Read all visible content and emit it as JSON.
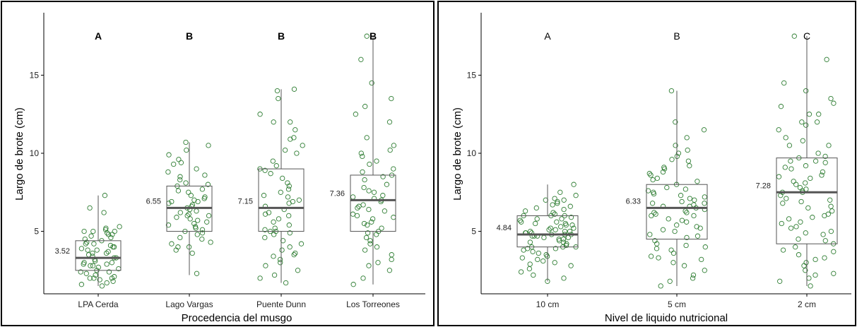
{
  "chart_data": [
    {
      "type": "box",
      "xlabel": "Procedencia del musgo",
      "ylabel": "Largo de brote (cm)",
      "ylim": [
        1,
        19
      ],
      "yticks": [
        5,
        10,
        15
      ],
      "letters_bold": true,
      "categories": [
        "LPA Cerda",
        "Lago Vargas",
        "Puente Dunn",
        "Los Torreones"
      ],
      "letters": [
        "A",
        "B",
        "B",
        "B"
      ],
      "means": [
        "3.52",
        "6.55",
        "7.15",
        "7.36"
      ],
      "boxes": [
        {
          "whisker_low": 1.5,
          "q1": 2.5,
          "median": 3.3,
          "q3": 4.4,
          "whisker_high": 7.3
        },
        {
          "whisker_low": 2.2,
          "q1": 5.0,
          "median": 6.5,
          "q3": 7.9,
          "whisker_high": 10.7
        },
        {
          "whisker_low": 1.7,
          "q1": 5.0,
          "median": 6.5,
          "q3": 9.0,
          "whisker_high": 14.1
        },
        {
          "whisker_low": 1.6,
          "q1": 5.0,
          "median": 7.0,
          "q3": 8.6,
          "whisker_high": 17.5
        }
      ],
      "points": [
        [
          7.3,
          6.5,
          6.2,
          5.3,
          5.2,
          5.1,
          5.0,
          5.0,
          4.9,
          4.8,
          4.8,
          4.7,
          4.6,
          4.5,
          4.4,
          4.3,
          4.2,
          4.1,
          4.0,
          4.0,
          3.9,
          3.8,
          3.7,
          3.6,
          3.5,
          3.4,
          3.3,
          3.3,
          3.2,
          3.1,
          3.0,
          3.0,
          2.9,
          2.8,
          2.8,
          2.7,
          2.6,
          2.5,
          2.4,
          2.3,
          2.2,
          2.1,
          2.0,
          2.0,
          1.9,
          1.8,
          1.7,
          1.6,
          1.5,
          2.4,
          3.6,
          4.2,
          2.9,
          3.8,
          5.0,
          2.0
        ],
        [
          10.7,
          10.5,
          10.2,
          9.9,
          9.6,
          9.3,
          9.0,
          8.8,
          8.5,
          8.3,
          8.1,
          7.9,
          7.7,
          7.5,
          7.3,
          7.1,
          7.0,
          6.9,
          6.8,
          6.6,
          6.5,
          6.4,
          6.3,
          6.2,
          6.1,
          6.0,
          5.9,
          5.8,
          5.6,
          5.5,
          5.4,
          5.3,
          5.2,
          5.0,
          4.9,
          4.8,
          4.6,
          4.5,
          4.3,
          4.0,
          3.8,
          3.6,
          2.3,
          7.2,
          6.7,
          5.7,
          6.9,
          8.0,
          4.2,
          7.6,
          6.0,
          5.1,
          9.4,
          8.6,
          4.0
        ],
        [
          14.1,
          14.0,
          13.5,
          12.5,
          12.0,
          12.0,
          11.5,
          11.0,
          10.5,
          10.2,
          10.0,
          9.5,
          9.0,
          8.7,
          8.4,
          8.1,
          7.9,
          7.7,
          7.5,
          7.2,
          7.0,
          6.8,
          6.6,
          6.4,
          6.2,
          6.0,
          5.8,
          5.6,
          5.4,
          5.2,
          5.0,
          5.0,
          4.8,
          4.6,
          4.4,
          4.2,
          4.0,
          3.8,
          3.6,
          3.5,
          3.4,
          3.2,
          3.0,
          2.8,
          2.5,
          2.2,
          2.0,
          1.7,
          9.2,
          7.3,
          6.1,
          5.1,
          8.9,
          6.9,
          10.9,
          4.9
        ],
        [
          17.5,
          16.0,
          14.5,
          13.5,
          13.0,
          12.5,
          12.0,
          11.0,
          10.5,
          10.0,
          9.8,
          9.5,
          9.0,
          8.8,
          8.5,
          8.3,
          8.0,
          7.8,
          7.5,
          7.3,
          7.1,
          7.0,
          6.9,
          6.7,
          6.5,
          6.3,
          6.1,
          6.0,
          5.8,
          5.6,
          5.4,
          5.2,
          5.0,
          4.8,
          4.6,
          4.4,
          4.2,
          4.0,
          3.8,
          3.5,
          3.2,
          3.0,
          2.8,
          2.5,
          2.0,
          1.6,
          7.6,
          6.4,
          8.6,
          5.9,
          7.2,
          9.3,
          4.9,
          6.6,
          10.2,
          5.5
        ]
      ]
    },
    {
      "type": "box",
      "xlabel": "Nivel de liquido nutricional",
      "ylabel": "Largo de brote (cm)",
      "ylim": [
        1,
        19
      ],
      "yticks": [
        5,
        10,
        15
      ],
      "letters_bold": false,
      "categories": [
        "10 cm",
        "5 cm",
        "2 cm"
      ],
      "letters": [
        "A",
        "B",
        "C"
      ],
      "means": [
        "4.84",
        "6.33",
        "7.28"
      ],
      "boxes": [
        {
          "whisker_low": 1.8,
          "q1": 4.0,
          "median": 4.8,
          "q3": 6.0,
          "whisker_high": 8.0
        },
        {
          "whisker_low": 1.5,
          "q1": 4.5,
          "median": 6.5,
          "q3": 8.0,
          "whisker_high": 14.0
        },
        {
          "whisker_low": 1.5,
          "q1": 4.2,
          "median": 7.5,
          "q3": 9.7,
          "whisker_high": 17.5
        }
      ],
      "points": [
        [
          8.0,
          7.5,
          7.3,
          7.0,
          7.0,
          6.8,
          6.6,
          6.5,
          6.4,
          6.2,
          6.1,
          6.0,
          6.0,
          5.9,
          5.8,
          5.7,
          5.6,
          5.5,
          5.4,
          5.3,
          5.2,
          5.1,
          5.0,
          5.0,
          4.9,
          4.9,
          4.8,
          4.8,
          4.7,
          4.7,
          4.6,
          4.5,
          4.5,
          4.4,
          4.3,
          4.2,
          4.1,
          4.0,
          4.0,
          3.9,
          3.8,
          3.7,
          3.6,
          3.5,
          3.4,
          3.3,
          3.2,
          3.0,
          2.8,
          2.6,
          2.4,
          2.2,
          2.0,
          1.8,
          5.1,
          4.8,
          6.3,
          5.5,
          4.6,
          3.9,
          7.1,
          5.8,
          4.9,
          6.7,
          5.2,
          4.3,
          3.1,
          5.6,
          4.0,
          6.0,
          5.0,
          4.7,
          2.9,
          6.9,
          5.4
        ],
        [
          14.0,
          12.0,
          11.5,
          11.0,
          10.5,
          10.2,
          10.0,
          9.8,
          9.5,
          9.2,
          9.0,
          8.8,
          8.6,
          8.4,
          8.2,
          8.0,
          7.8,
          7.6,
          7.4,
          7.2,
          7.0,
          6.9,
          6.8,
          6.7,
          6.6,
          6.5,
          6.4,
          6.3,
          6.2,
          6.1,
          6.0,
          5.8,
          5.6,
          5.4,
          5.2,
          5.0,
          4.8,
          4.6,
          4.4,
          4.2,
          4.0,
          3.8,
          3.6,
          3.4,
          3.2,
          3.0,
          2.8,
          2.5,
          2.2,
          2.0,
          1.8,
          1.5,
          7.1,
          6.0,
          8.7,
          5.3,
          9.6,
          4.7,
          7.7,
          6.6,
          3.9,
          8.3,
          5.7,
          7.3,
          4.1,
          6.8,
          9.1,
          5.1,
          7.5,
          3.3,
          6.2
        ],
        [
          17.5,
          16.0,
          14.5,
          14.0,
          13.5,
          13.0,
          12.5,
          12.0,
          12.0,
          11.5,
          11.0,
          10.5,
          10.0,
          9.8,
          9.5,
          9.5,
          9.2,
          9.0,
          8.8,
          8.5,
          8.2,
          8.0,
          7.8,
          7.6,
          7.5,
          7.5,
          7.3,
          7.0,
          6.8,
          6.5,
          6.3,
          6.0,
          5.8,
          5.5,
          5.2,
          5.0,
          4.8,
          4.5,
          4.2,
          4.0,
          3.8,
          3.5,
          3.2,
          3.0,
          2.8,
          2.5,
          2.2,
          2.0,
          1.8,
          1.5,
          10.5,
          8.6,
          6.1,
          9.7,
          4.9,
          7.1,
          12.5,
          5.3,
          8.1,
          3.3,
          11.8,
          6.9,
          9.4,
          2.3,
          7.7,
          5.6,
          10.8,
          4.4,
          8.4,
          6.6,
          13.2,
          3.7,
          9.1,
          5.9
        ]
      ]
    }
  ]
}
